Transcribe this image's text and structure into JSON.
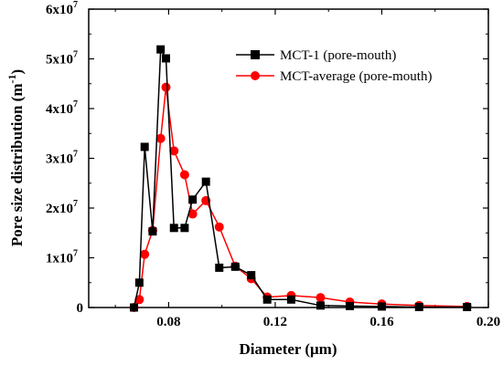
{
  "chart_data": {
    "type": "line",
    "xlabel": "Diameter (μm)",
    "ylabel_main": "Pore size distribution (m",
    "ylabel_exp": "-1",
    "ylabel_close": ")",
    "xlim": [
      0.05,
      0.2
    ],
    "ylim": [
      0,
      60000000
    ],
    "x_ticks": [
      0.08,
      0.12,
      0.16,
      0.2
    ],
    "x_tick_labels": [
      "0.08",
      "0.12",
      "0.16",
      "0.20"
    ],
    "y_ticks": [
      0,
      10000000,
      20000000,
      30000000,
      40000000,
      50000000,
      60000000
    ],
    "y_tick_labels": [
      {
        "base": "0",
        "exp": ""
      },
      {
        "base": "1x10",
        "exp": "7"
      },
      {
        "base": "2x10",
        "exp": "7"
      },
      {
        "base": "3x10",
        "exp": "7"
      },
      {
        "base": "4x10",
        "exp": "7"
      },
      {
        "base": "5x10",
        "exp": "7"
      },
      {
        "base": "6x10",
        "exp": "7"
      }
    ],
    "legend_position": "top-right",
    "series": [
      {
        "name": "MCT-1 (pore-mouth)",
        "color": "#000000",
        "marker": "square",
        "x": [
          0.067,
          0.069,
          0.071,
          0.074,
          0.077,
          0.079,
          0.082,
          0.086,
          0.089,
          0.094,
          0.099,
          0.105,
          0.111,
          0.117,
          0.126,
          0.137,
          0.148,
          0.16,
          0.174,
          0.192
        ],
        "y": [
          0,
          5000000,
          32300000,
          15300000,
          51900000,
          50100000,
          16000000,
          16000000,
          21700000,
          25300000,
          8000000,
          8200000,
          6500000,
          1600000,
          1600000,
          400000,
          300000,
          200000,
          100000,
          100000
        ]
      },
      {
        "name": "MCT-average (pore-mouth)",
        "color": "#ff0000",
        "marker": "circle",
        "x": [
          0.067,
          0.069,
          0.071,
          0.074,
          0.077,
          0.079,
          0.082,
          0.086,
          0.089,
          0.094,
          0.099,
          0.105,
          0.111,
          0.117,
          0.126,
          0.137,
          0.148,
          0.16,
          0.174,
          0.192
        ],
        "y": [
          0,
          1600000,
          10700000,
          15500000,
          34000000,
          44300000,
          31500000,
          26700000,
          18800000,
          21500000,
          16200000,
          8300000,
          5800000,
          2100000,
          2400000,
          2000000,
          1100000,
          700000,
          400000,
          200000
        ]
      }
    ]
  }
}
